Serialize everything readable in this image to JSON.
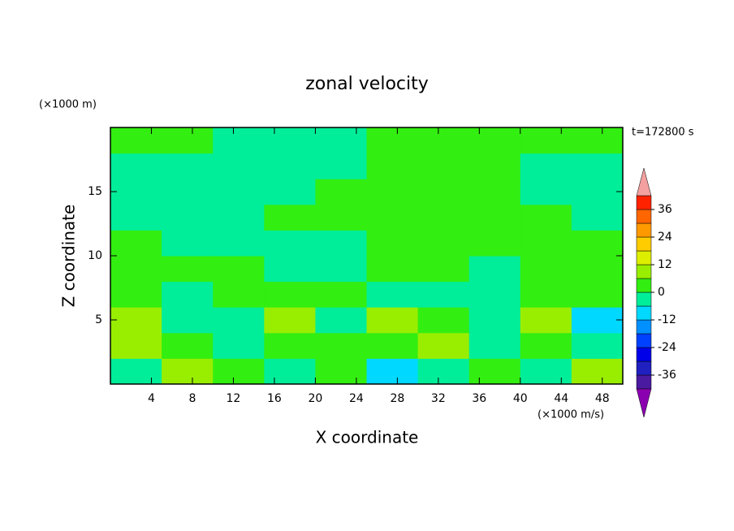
{
  "chart_data": {
    "type": "contour",
    "title": "zonal velocity",
    "y_unit": "(×1000 m)",
    "x_unit": "(×1000 m/s)",
    "time_label": "t=172800 s",
    "xlabel": "X coordinate",
    "ylabel": "Z coordinate",
    "xlim": [
      0,
      50
    ],
    "ylim": [
      0,
      20
    ],
    "xticks": [
      4,
      8,
      12,
      16,
      20,
      24,
      28,
      32,
      36,
      40,
      44,
      48
    ],
    "yticks": [
      5,
      10,
      15
    ],
    "x": [
      2.5,
      7.5,
      12.5,
      17.5,
      22.5,
      27.5,
      32.5,
      37.5,
      42.5,
      47.5
    ],
    "y": [
      1,
      3,
      5,
      7,
      9,
      11,
      13,
      15,
      17,
      19
    ],
    "z": [
      [
        -3,
        8,
        3,
        -3,
        3,
        -8,
        -3,
        3,
        -3,
        8
      ],
      [
        8,
        3,
        -3,
        3,
        3,
        3,
        8,
        -3,
        3,
        -3
      ],
      [
        8,
        -3,
        -3,
        8,
        -3,
        8,
        3,
        -3,
        8,
        -8
      ],
      [
        3,
        -3,
        3,
        3,
        3,
        -3,
        -3,
        -3,
        3,
        3
      ],
      [
        3,
        3,
        3,
        -3,
        -3,
        3,
        3,
        -3,
        3,
        3
      ],
      [
        3,
        -3,
        -3,
        -3,
        -3,
        3,
        3,
        3,
        3,
        3
      ],
      [
        -3,
        -3,
        -3,
        3,
        3,
        3,
        3,
        3,
        3,
        -3
      ],
      [
        -3,
        -3,
        -3,
        -3,
        3,
        3,
        3,
        3,
        -3,
        -3
      ],
      [
        -3,
        -3,
        -3,
        -3,
        -3,
        3,
        3,
        3,
        -3,
        -3
      ],
      [
        3,
        3,
        -3,
        -3,
        -3,
        3,
        3,
        3,
        3,
        3
      ]
    ],
    "colorbar": {
      "levels": [
        -42,
        -36,
        -30,
        -24,
        -18,
        -12,
        -6,
        0,
        6,
        12,
        18,
        24,
        30,
        36,
        42
      ],
      "colors": [
        "#8a00b0",
        "#4a1aa0",
        "#2020c0",
        "#0000e8",
        "#0040ff",
        "#0090ff",
        "#00d8ff",
        "#00ee99",
        "#33ee11",
        "#99ee00",
        "#ddee00",
        "#ffcc00",
        "#ff9900",
        "#ff6600",
        "#ff2200",
        "#f4a0a0"
      ],
      "ticks": [
        -36,
        -24,
        -12,
        0,
        12,
        24,
        36
      ]
    }
  }
}
